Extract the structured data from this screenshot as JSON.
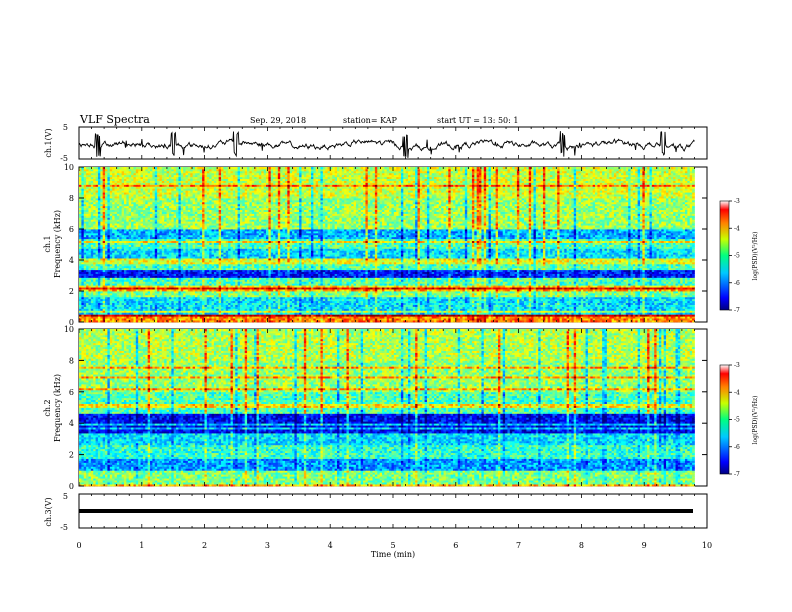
{
  "header": {
    "title": "VLF Spectra",
    "date": "Sep. 29, 2018",
    "station": "station= KAP",
    "start": "start  UT =   13: 50: 1"
  },
  "chart_data": [
    {
      "type": "line",
      "panel": "ch1-waveform",
      "ylabel": "ch.1(V)",
      "ylim": [
        -5,
        5
      ],
      "yticklabels": [
        "5",
        "-5"
      ],
      "xlim": [
        0,
        10
      ],
      "series": [
        {
          "values_desc": "noisy broadband signal mostly between -3 and 2 V with spikes near 0.3, 1.5, 2.5, 5.2, 7.7 and 9.3 min"
        }
      ]
    },
    {
      "type": "heatmap",
      "panel": "ch1-spectrogram",
      "ylabel": "ch.1\nFrequency (kHz)",
      "ylim": [
        0,
        10
      ],
      "yticklabels": [
        "0",
        "2",
        "4",
        "6",
        "8",
        "10"
      ],
      "xlim": [
        0,
        9.8
      ],
      "colorbar": {
        "label": "log(PSD)(V²/Hz)",
        "range": [
          -7,
          -3
        ],
        "ticklabels": [
          "-3",
          "-4",
          "-5",
          "-6",
          "-7"
        ],
        "colormap": "jet"
      },
      "bands": [
        {
          "f": [
            0.0,
            0.5
          ],
          "level": -4.0
        },
        {
          "f": [
            0.5,
            1.6
          ],
          "level": -5.6
        },
        {
          "f": [
            1.6,
            2.0
          ],
          "level": -5.0
        },
        {
          "f": [
            2.0,
            2.3
          ],
          "level": -4.2
        },
        {
          "f": [
            2.3,
            2.9
          ],
          "level": -5.2
        },
        {
          "f": [
            2.9,
            3.4
          ],
          "level": -6.4
        },
        {
          "f": [
            3.4,
            3.7
          ],
          "level": -5.2
        },
        {
          "f": [
            3.7,
            4.1
          ],
          "level": -4.6
        },
        {
          "f": [
            4.1,
            4.7
          ],
          "level": -5.6
        },
        {
          "f": [
            4.7,
            5.4
          ],
          "level": -5.2
        },
        {
          "f": [
            5.4,
            6.0
          ],
          "level": -5.8
        },
        {
          "f": [
            6.0,
            8.0
          ],
          "level": -4.9
        },
        {
          "f": [
            8.0,
            10.0
          ],
          "level": -4.7
        }
      ]
    },
    {
      "type": "heatmap",
      "panel": "ch2-spectrogram",
      "ylabel": "ch.2\nFrequency (kHz)",
      "ylim": [
        0,
        10
      ],
      "yticklabels": [
        "0",
        "2",
        "4",
        "6",
        "8",
        "10"
      ],
      "xlim": [
        0,
        9.8
      ],
      "colorbar": {
        "label": "log(PSD)(V²/Hz)",
        "range": [
          -7,
          -3
        ],
        "ticklabels": [
          "-3",
          "-4",
          "-5",
          "-6",
          "-7"
        ],
        "colormap": "jet"
      },
      "bands": [
        {
          "f": [
            0.0,
            1.0
          ],
          "level": -5.0
        },
        {
          "f": [
            1.0,
            1.8
          ],
          "level": -5.9
        },
        {
          "f": [
            1.8,
            2.6
          ],
          "level": -5.3
        },
        {
          "f": [
            2.6,
            3.4
          ],
          "level": -5.6
        },
        {
          "f": [
            3.4,
            4.6
          ],
          "level": -6.5
        },
        {
          "f": [
            4.6,
            6.0
          ],
          "level": -5.2
        },
        {
          "f": [
            6.0,
            8.0
          ],
          "level": -4.9
        },
        {
          "f": [
            8.0,
            10.0
          ],
          "level": -4.8
        }
      ]
    },
    {
      "type": "line",
      "panel": "ch3-waveform",
      "ylabel": "ch.3(V)",
      "ylim": [
        -5,
        5
      ],
      "yticklabels": [
        "5",
        "-5"
      ],
      "xlim": [
        0,
        10
      ],
      "series": [
        {
          "values_desc": "constant flat line near 0 V"
        }
      ]
    }
  ],
  "xaxis": {
    "label": "Time (min)",
    "ticks": [
      0,
      1,
      2,
      3,
      4,
      5,
      6,
      7,
      8,
      9,
      10
    ],
    "ticklabels": [
      "0",
      "1",
      "2",
      "3",
      "4",
      "5",
      "6",
      "7",
      "8",
      "9",
      "10"
    ]
  }
}
